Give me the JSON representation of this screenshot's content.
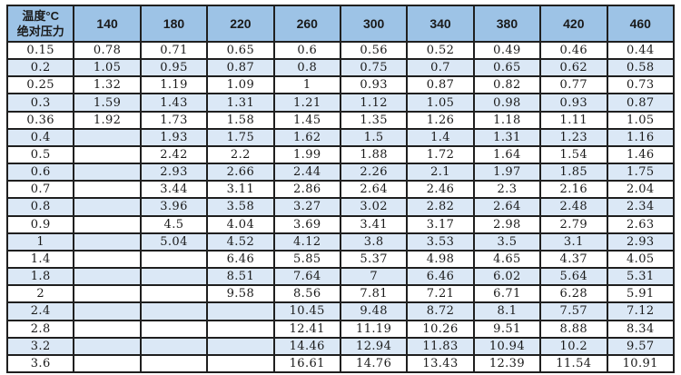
{
  "table": {
    "corner": {
      "line1": "温度°C",
      "line2": "绝对压力"
    },
    "columns": [
      "140",
      "180",
      "220",
      "260",
      "300",
      "340",
      "380",
      "420",
      "460"
    ],
    "rows": [
      {
        "pressure": "0.15",
        "values": [
          "0.78",
          "0.71",
          "0.65",
          "0.6",
          "0.56",
          "0.52",
          "0.49",
          "0.46",
          "0.44"
        ]
      },
      {
        "pressure": "0.2",
        "values": [
          "1.05",
          "0.95",
          "0.87",
          "0.8",
          "0.75",
          "0.7",
          "0.65",
          "0.62",
          "0.58"
        ]
      },
      {
        "pressure": "0.25",
        "values": [
          "1.32",
          "1.19",
          "1.09",
          "1",
          "0.93",
          "0.87",
          "0.82",
          "0.77",
          "0.73"
        ]
      },
      {
        "pressure": "0.3",
        "values": [
          "1.59",
          "1.43",
          "1.31",
          "1.21",
          "1.12",
          "1.05",
          "0.98",
          "0.93",
          "0.87"
        ]
      },
      {
        "pressure": "0.36",
        "values": [
          "1.92",
          "1.73",
          "1.58",
          "1.45",
          "1.35",
          "1.26",
          "1.18",
          "1.11",
          "1.05"
        ]
      },
      {
        "pressure": "0.4",
        "values": [
          "",
          "1.93",
          "1.75",
          "1.62",
          "1.5",
          "1.4",
          "1.31",
          "1.23",
          "1.16"
        ]
      },
      {
        "pressure": "0.5",
        "values": [
          "",
          "2.42",
          "2.2",
          "1.99",
          "1.88",
          "1.72",
          "1.64",
          "1.54",
          "1.46"
        ]
      },
      {
        "pressure": "0.6",
        "values": [
          "",
          "2.93",
          "2.66",
          "2.44",
          "2.26",
          "2.1",
          "1.97",
          "1.85",
          "1.75"
        ]
      },
      {
        "pressure": "0.7",
        "values": [
          "",
          "3.44",
          "3.11",
          "2.86",
          "2.64",
          "2.46",
          "2.3",
          "2.16",
          "2.04"
        ]
      },
      {
        "pressure": "0.8",
        "values": [
          "",
          "3.96",
          "3.58",
          "3.27",
          "3.02",
          "2.82",
          "2.64",
          "2.48",
          "2.34"
        ]
      },
      {
        "pressure": "0.9",
        "values": [
          "",
          "4.5",
          "4.04",
          "3.69",
          "3.41",
          "3.17",
          "2.98",
          "2.79",
          "2.63"
        ]
      },
      {
        "pressure": "1",
        "values": [
          "",
          "5.04",
          "4.52",
          "4.12",
          "3.8",
          "3.53",
          "3.5",
          "3.1",
          "2.93"
        ]
      },
      {
        "pressure": "1.4",
        "values": [
          "",
          "",
          "6.46",
          "5.85",
          "5.37",
          "4.98",
          "4.65",
          "4.37",
          "4.05"
        ]
      },
      {
        "pressure": "1.8",
        "values": [
          "",
          "",
          "8.51",
          "7.64",
          "7",
          "6.46",
          "6.02",
          "5.64",
          "5.31"
        ]
      },
      {
        "pressure": "2",
        "values": [
          "",
          "",
          "9.58",
          "8.56",
          "7.81",
          "7.21",
          "6.71",
          "6.28",
          "5.91"
        ]
      },
      {
        "pressure": "2.4",
        "values": [
          "",
          "",
          "",
          "10.45",
          "9.48",
          "8.72",
          "8.1",
          "7.57",
          "7.12"
        ]
      },
      {
        "pressure": "2.8",
        "values": [
          "",
          "",
          "",
          "12.41",
          "11.19",
          "10.26",
          "9.51",
          "8.88",
          "8.34"
        ]
      },
      {
        "pressure": "3.2",
        "values": [
          "",
          "",
          "",
          "14.46",
          "12.94",
          "11.83",
          "10.94",
          "10.2",
          "9.57"
        ]
      },
      {
        "pressure": "3.6",
        "values": [
          "",
          "",
          "",
          "16.61",
          "14.76",
          "13.43",
          "12.39",
          "11.54",
          "10.91"
        ]
      }
    ],
    "colors": {
      "header_bg": "#9dc3e6",
      "stripe_bg": "#dbe8f6",
      "row_bg": "#ffffff",
      "border": "#1f1f1f",
      "text": "#1a1a1a"
    }
  }
}
